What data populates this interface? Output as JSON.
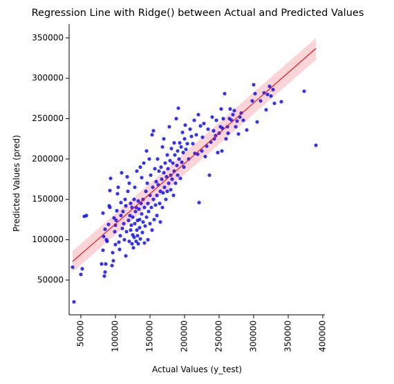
{
  "chart_data": {
    "type": "scatter",
    "title": "Regression Line with Ridge() between Actual and Predicted Values",
    "xlabel": "Actual Values (y_test)",
    "ylabel": "Predicted Values (pred)",
    "xlim": [
      33000,
      403000
    ],
    "ylim": [
      7000,
      367000
    ],
    "xticks": [
      50000,
      100000,
      150000,
      200000,
      250000,
      300000,
      350000,
      400000
    ],
    "yticks": [
      50000,
      100000,
      150000,
      200000,
      250000,
      300000,
      350000
    ],
    "grid": false,
    "legend": "none",
    "colors": {
      "points": "#1010ee",
      "line": "#e8141e",
      "band": "#f7b8bb"
    },
    "regression": {
      "x": [
        38000,
        390000
      ],
      "y": [
        73000,
        337000
      ],
      "ci_lower": [
        60000,
        323000
      ],
      "ci_upper": [
        86000,
        350000
      ]
    },
    "series": [
      {
        "points": [
          [
            40000,
            23000
          ],
          [
            38000,
            66000
          ],
          [
            50000,
            57000
          ],
          [
            52000,
            64000
          ],
          [
            55000,
            129000
          ],
          [
            58000,
            130000
          ],
          [
            80000,
            70000
          ],
          [
            82000,
            87000
          ],
          [
            84000,
            55000
          ],
          [
            85000,
            60000
          ],
          [
            86000,
            70000
          ],
          [
            82000,
            133000
          ],
          [
            83000,
            104000
          ],
          [
            85000,
            113000
          ],
          [
            87000,
            100000
          ],
          [
            88000,
            98000
          ],
          [
            90000,
            119000
          ],
          [
            91000,
            142000
          ],
          [
            92000,
            140000
          ],
          [
            92000,
            161000
          ],
          [
            93000,
            176000
          ],
          [
            95000,
            68000
          ],
          [
            96000,
            84000
          ],
          [
            97000,
            74000
          ],
          [
            98000,
            127000
          ],
          [
            99000,
            110000
          ],
          [
            100000,
            94000
          ],
          [
            100000,
            118000
          ],
          [
            101000,
            124000
          ],
          [
            102000,
            136000
          ],
          [
            103000,
            157000
          ],
          [
            104000,
            165000
          ],
          [
            105000,
            97000
          ],
          [
            106000,
            88000
          ],
          [
            107000,
            105000
          ],
          [
            108000,
            146000
          ],
          [
            108000,
            130000
          ],
          [
            109000,
            183000
          ],
          [
            110000,
            114000
          ],
          [
            111000,
            135000
          ],
          [
            112000,
            120000
          ],
          [
            113000,
            100000
          ],
          [
            114000,
            150000
          ],
          [
            115000,
            80000
          ],
          [
            115000,
            142000
          ],
          [
            116000,
            110000
          ],
          [
            117000,
            178000
          ],
          [
            118000,
            160000
          ],
          [
            119000,
            124000
          ],
          [
            120000,
            98000
          ],
          [
            120000,
            170000
          ],
          [
            121000,
            130000
          ],
          [
            122000,
            112000
          ],
          [
            122000,
            145000
          ],
          [
            123000,
            118000
          ],
          [
            124000,
            95000
          ],
          [
            124000,
            140000
          ],
          [
            125000,
            106000
          ],
          [
            125000,
            128000
          ],
          [
            126000,
            90000
          ],
          [
            127000,
            103000
          ],
          [
            127000,
            150000
          ],
          [
            128000,
            120000
          ],
          [
            128000,
            165000
          ],
          [
            129000,
            135000
          ],
          [
            130000,
            98000
          ],
          [
            130000,
            140000
          ],
          [
            131000,
            112000
          ],
          [
            131000,
            185000
          ],
          [
            132000,
            124000
          ],
          [
            132000,
            105000
          ],
          [
            133000,
            95000
          ],
          [
            133000,
            148000
          ],
          [
            134000,
            138000
          ],
          [
            135000,
            115000
          ],
          [
            135000,
            125000
          ],
          [
            136000,
            101000
          ],
          [
            136000,
            190000
          ],
          [
            137000,
            145000
          ],
          [
            138000,
            132000
          ],
          [
            138000,
            177000
          ],
          [
            139000,
            109000
          ],
          [
            140000,
            150000
          ],
          [
            140000,
            122000
          ],
          [
            141000,
            195000
          ],
          [
            142000,
            140000
          ],
          [
            142000,
            96000
          ],
          [
            143000,
            117000
          ],
          [
            144000,
            160000
          ],
          [
            145000,
            128000
          ],
          [
            145000,
            210000
          ],
          [
            146000,
            170000
          ],
          [
            147000,
            145000
          ],
          [
            147000,
            100000
          ],
          [
            148000,
            135000
          ],
          [
            149000,
            200000
          ],
          [
            150000,
            155000
          ],
          [
            150000,
            120000
          ],
          [
            151000,
            180000
          ],
          [
            152000,
            140000
          ],
          [
            153000,
            230000
          ],
          [
            153000,
            112000
          ],
          [
            154000,
            165000
          ],
          [
            155000,
            150000
          ],
          [
            155000,
            235000
          ],
          [
            156000,
            125000
          ],
          [
            157000,
            188000
          ],
          [
            158000,
            143000
          ],
          [
            159000,
            172000
          ],
          [
            160000,
            155000
          ],
          [
            160000,
            130000
          ],
          [
            161000,
            200000
          ],
          [
            162000,
            168000
          ],
          [
            163000,
            185000
          ],
          [
            164000,
            145000
          ],
          [
            165000,
            160000
          ],
          [
            165000,
            122000
          ],
          [
            166000,
            190000
          ],
          [
            167000,
            175000
          ],
          [
            168000,
            215000
          ],
          [
            168000,
            140000
          ],
          [
            169000,
            158000
          ],
          [
            170000,
            183000
          ],
          [
            170000,
            225000
          ],
          [
            171000,
            165000
          ],
          [
            172000,
            195000
          ],
          [
            173000,
            150000
          ],
          [
            174000,
            178000
          ],
          [
            175000,
            205000
          ],
          [
            175000,
            160000
          ],
          [
            176000,
            188000
          ],
          [
            177000,
            170000
          ],
          [
            178000,
            240000
          ],
          [
            179000,
            198000
          ],
          [
            180000,
            180000
          ],
          [
            180000,
            162000
          ],
          [
            181000,
            213000
          ],
          [
            182000,
            175000
          ],
          [
            183000,
            195000
          ],
          [
            184000,
            155000
          ],
          [
            185000,
            220000
          ],
          [
            185000,
            185000
          ],
          [
            186000,
            205000
          ],
          [
            187000,
            170000
          ],
          [
            188000,
            250000
          ],
          [
            189000,
            192000
          ],
          [
            190000,
            210000
          ],
          [
            190000,
            180000
          ],
          [
            191000,
            263000
          ],
          [
            192000,
            200000
          ],
          [
            193000,
            220000
          ],
          [
            194000,
            176000
          ],
          [
            195000,
            215000
          ],
          [
            196000,
            196000
          ],
          [
            197000,
            233000
          ],
          [
            198000,
            208000
          ],
          [
            199000,
            190000
          ],
          [
            200000,
            225000
          ],
          [
            201000,
            242000
          ],
          [
            202000,
            212000
          ],
          [
            204000,
            219000
          ],
          [
            206000,
            200000
          ],
          [
            208000,
            237000
          ],
          [
            210000,
            228000
          ],
          [
            212000,
            219000
          ],
          [
            214000,
            248000
          ],
          [
            215000,
            207000
          ],
          [
            217000,
            230000
          ],
          [
            219000,
            206000
          ],
          [
            220000,
            255000
          ],
          [
            221000,
            146000
          ],
          [
            223000,
            241000
          ],
          [
            225000,
            210000
          ],
          [
            226000,
            227000
          ],
          [
            228000,
            244000
          ],
          [
            230000,
            203000
          ],
          [
            232000,
            216000
          ],
          [
            234000,
            237000
          ],
          [
            236000,
            180000
          ],
          [
            238000,
            221000
          ],
          [
            240000,
            252000
          ],
          [
            242000,
            235000
          ],
          [
            243000,
            225000
          ],
          [
            245000,
            229000
          ],
          [
            246000,
            248000
          ],
          [
            248000,
            208000
          ],
          [
            250000,
            232000
          ],
          [
            252000,
            240000
          ],
          [
            253000,
            262000
          ],
          [
            254000,
            210000
          ],
          [
            255000,
            238000
          ],
          [
            256000,
            250000
          ],
          [
            258000,
            281000
          ],
          [
            260000,
            225000
          ],
          [
            262000,
            240000
          ],
          [
            263000,
            232000
          ],
          [
            265000,
            250000
          ],
          [
            266000,
            262000
          ],
          [
            268000,
            248000
          ],
          [
            270000,
            255000
          ],
          [
            272000,
            260000
          ],
          [
            274000,
            240000
          ],
          [
            276000,
            247000
          ],
          [
            278000,
            231000
          ],
          [
            280000,
            252000
          ],
          [
            282000,
            257000
          ],
          [
            285000,
            248000
          ],
          [
            290000,
            236000
          ],
          [
            298000,
            272000
          ],
          [
            300000,
            292000
          ],
          [
            302000,
            281000
          ],
          [
            305000,
            246000
          ],
          [
            310000,
            272000
          ],
          [
            315000,
            282000
          ],
          [
            318000,
            261000
          ],
          [
            320000,
            280000
          ],
          [
            323000,
            290000
          ],
          [
            325000,
            278000
          ],
          [
            328000,
            286000
          ],
          [
            330000,
            269000
          ],
          [
            340000,
            271000
          ],
          [
            373000,
            284000
          ],
          [
            390000,
            217000
          ]
        ]
      }
    ]
  }
}
